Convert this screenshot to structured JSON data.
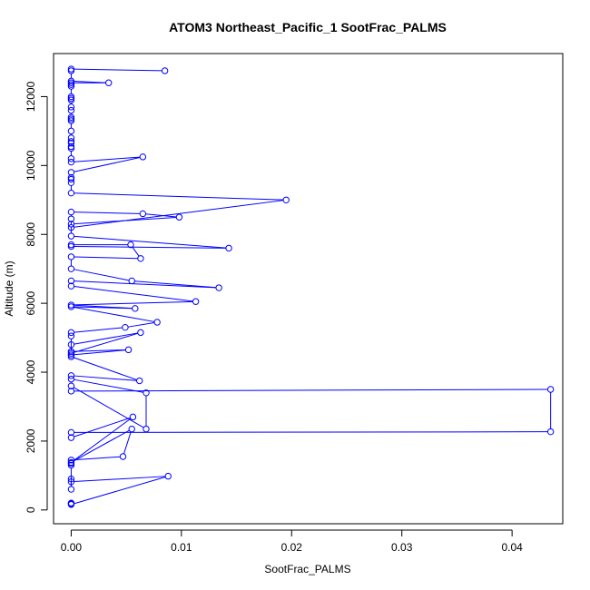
{
  "chart_data": {
    "type": "line",
    "title": "ATOM3 Northeast_Pacific_1 SootFrac_PALMS",
    "xlabel": "SootFrac_PALMS",
    "ylabel": "Altitude (m)",
    "xlim": [
      -0.0016,
      0.0446
    ],
    "ylim": [
      -400,
      13250
    ],
    "xticks": [
      0.0,
      0.01,
      0.02,
      0.03,
      0.04
    ],
    "xtick_labels": [
      "0.00",
      "0.01",
      "0.02",
      "0.03",
      "0.04"
    ],
    "yticks": [
      0,
      2000,
      4000,
      6000,
      8000,
      10000,
      12000
    ],
    "ytick_labels": [
      "0",
      "2000",
      "4000",
      "6000",
      "8000",
      "10000",
      "12000"
    ],
    "grid": false,
    "color": "#0000ff",
    "points": [
      [
        0.0,
        200
      ],
      [
        0.0,
        180
      ],
      [
        0.0,
        160
      ],
      [
        0.0088,
        980
      ],
      [
        0.0,
        820
      ],
      [
        0.0,
        900
      ],
      [
        0.0,
        600
      ],
      [
        0.0,
        1300
      ],
      [
        0.0,
        1350
      ],
      [
        0.0,
        1450
      ],
      [
        0.0047,
        1550
      ],
      [
        0.0055,
        2350
      ],
      [
        0.0,
        1380
      ],
      [
        0.0056,
        2700
      ],
      [
        0.0,
        2100
      ],
      [
        0.0,
        2250
      ],
      [
        0.0435,
        2270
      ],
      [
        0.0435,
        3500
      ],
      [
        0.0,
        3450
      ],
      [
        0.0,
        3600
      ],
      [
        0.0068,
        2350
      ],
      [
        0.0068,
        3400
      ],
      [
        0.0,
        3800
      ],
      [
        0.0,
        3900
      ],
      [
        0.0062,
        3750
      ],
      [
        0.0,
        4450
      ],
      [
        0.0,
        4500
      ],
      [
        0.0052,
        4650
      ],
      [
        0.0,
        4600
      ],
      [
        0.0,
        4800
      ],
      [
        0.0063,
        5150
      ],
      [
        0.0,
        4550
      ],
      [
        0.0,
        5050
      ],
      [
        0.0,
        5150
      ],
      [
        0.0049,
        5300
      ],
      [
        0.0078,
        5450
      ],
      [
        0.0,
        5900
      ],
      [
        0.0058,
        5850
      ],
      [
        0.0,
        5950
      ],
      [
        0.0113,
        6050
      ],
      [
        0.0,
        6500
      ],
      [
        0.0,
        6650
      ],
      [
        0.0134,
        6450
      ],
      [
        0.0055,
        6650
      ],
      [
        0.0,
        7000
      ],
      [
        0.0,
        7350
      ],
      [
        0.0063,
        7300
      ],
      [
        0.0054,
        7700
      ],
      [
        0.0,
        7700
      ],
      [
        0.0,
        7650
      ],
      [
        0.0143,
        7600
      ],
      [
        0.0,
        7950
      ],
      [
        0.0,
        8300
      ],
      [
        0.0098,
        8500
      ],
      [
        0.0065,
        8600
      ],
      [
        0.0,
        8650
      ],
      [
        0.0,
        8450
      ],
      [
        0.0,
        8200
      ],
      [
        0.0195,
        9000
      ],
      [
        0.0,
        9200
      ],
      [
        0.0,
        9500
      ],
      [
        0.0,
        9600
      ],
      [
        0.0,
        9650
      ],
      [
        0.0,
        9800
      ],
      [
        0.0065,
        10250
      ],
      [
        0.0,
        10100
      ],
      [
        0.0,
        10200
      ],
      [
        0.0,
        10500
      ],
      [
        0.0,
        10550
      ],
      [
        0.0,
        10650
      ],
      [
        0.0,
        10700
      ],
      [
        0.0,
        10800
      ],
      [
        0.0,
        11000
      ],
      [
        0.0,
        11300
      ],
      [
        0.0,
        11350
      ],
      [
        0.0,
        11400
      ],
      [
        0.0,
        11600
      ],
      [
        0.0,
        11700
      ],
      [
        0.0,
        11900
      ],
      [
        0.0,
        11950
      ],
      [
        0.0,
        12000
      ],
      [
        0.0,
        12300
      ],
      [
        0.0,
        12350
      ],
      [
        0.0,
        12400
      ],
      [
        0.0034,
        12400
      ],
      [
        0.0,
        12450
      ],
      [
        0.0,
        12750
      ],
      [
        0.0,
        12800
      ],
      [
        0.0085,
        12750
      ]
    ]
  }
}
